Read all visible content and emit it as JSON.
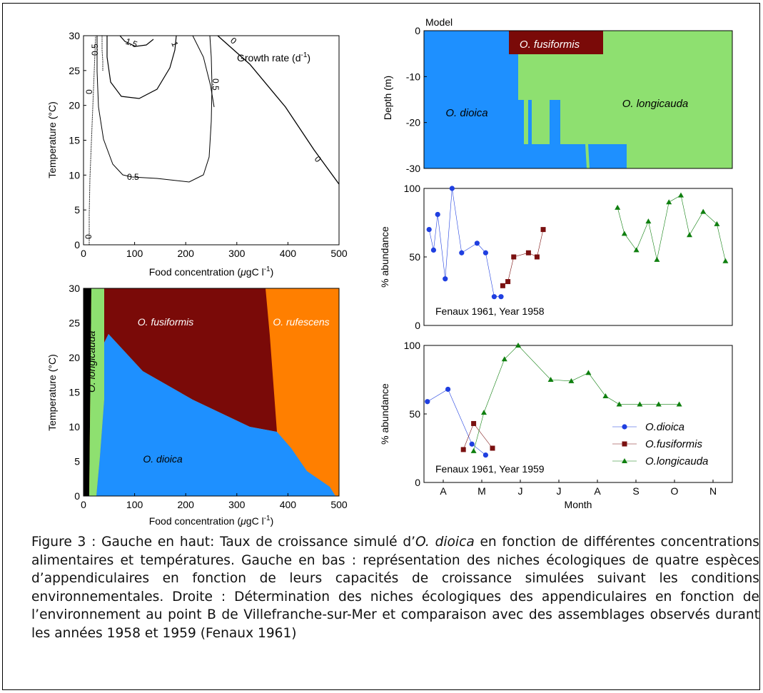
{
  "charts": {
    "growth": {
      "type": "contour",
      "ylabel": "Temperature (°C)",
      "xlabel_parts": [
        "Food concentration (",
        "μ",
        "gC l",
        "-1",
        ")"
      ],
      "annotation": "Growth rate (d",
      "annotation_sup": "-1",
      "annotation_tail": ")",
      "xticks": [
        "0",
        "100",
        "200",
        "300",
        "400",
        "500"
      ],
      "yticks": [
        "0",
        "5",
        "10",
        "15",
        "20",
        "25",
        "30"
      ],
      "contour_labels": [
        "1.5",
        "0.5",
        "0",
        "1",
        "0.5",
        "0",
        "0.5",
        "0"
      ]
    },
    "niche": {
      "type": "heatmap",
      "ylabel": "Temperature (°C)",
      "xlabel_parts": [
        "Food concentration (",
        "μ",
        "gC l",
        "-1",
        ")"
      ],
      "xticks": [
        "0",
        "100",
        "200",
        "300",
        "400",
        "500"
      ],
      "yticks": [
        "0",
        "5",
        "10",
        "15",
        "20",
        "25",
        "30"
      ],
      "regions": [
        "O. longicauda",
        "O. fusiformis",
        "O. rufescens",
        "O. dioica"
      ]
    },
    "model": {
      "type": "heatmap",
      "title": "Model",
      "ylabel": "Depth (m)",
      "yticks": [
        "0",
        "-10",
        "-20",
        "-30"
      ],
      "regions": [
        "O. fusiformis",
        "O. dioica",
        "O. longicauda"
      ]
    },
    "y1958": {
      "type": "line",
      "ylabel": "% abundance",
      "yticks": [
        "0",
        "50",
        "100"
      ],
      "label": "Fenaux 1961, Year 1958"
    },
    "y1959": {
      "type": "line",
      "ylabel": "% abundance",
      "yticks": [
        "0",
        "50",
        "100"
      ],
      "label": "Fenaux 1961, Year 1959",
      "xticks": [
        "A",
        "M",
        "J",
        "J",
        "A",
        "S",
        "O",
        "N"
      ],
      "xlabel": "Month",
      "legend": [
        "O.dioica",
        "O.fusiformis",
        "O.longicauda"
      ]
    }
  },
  "chart_data": [
    {
      "type": "line",
      "name": "Fenaux 1961, Year 1958",
      "ylim": [
        0,
        100
      ],
      "series": [
        {
          "name": "O.dioica",
          "color": "#1f3fe0",
          "marker": "circle",
          "x": [
            3.05,
            3.18,
            3.3,
            3.52,
            3.72,
            4.0,
            4.45,
            4.7,
            4.95,
            5.15
          ],
          "y": [
            70,
            55,
            81,
            34,
            100,
            53,
            60,
            53,
            21,
            21
          ]
        },
        {
          "name": "O.fusiformis",
          "color": "#7a1010",
          "marker": "square",
          "x": [
            5.2,
            5.35,
            5.52,
            5.95,
            6.2,
            6.38
          ],
          "y": [
            29,
            32,
            50,
            53,
            50,
            70
          ]
        },
        {
          "name": "O.longicauda",
          "color": "#0f7f0f",
          "marker": "triangle",
          "x": [
            8.55,
            8.75,
            9.1,
            9.45,
            9.7,
            10.05,
            10.4,
            10.65,
            11.05,
            11.45,
            11.7
          ],
          "y": [
            86,
            67,
            55,
            76,
            48,
            90,
            95,
            66,
            83,
            74,
            47
          ]
        }
      ]
    },
    {
      "type": "line",
      "name": "Fenaux 1961, Year 1959",
      "ylim": [
        0,
        100
      ],
      "series": [
        {
          "name": "O.dioica",
          "color": "#1f3fe0",
          "marker": "circle",
          "x": [
            3.0,
            3.6,
            4.3,
            4.7
          ],
          "y": [
            59,
            68,
            28,
            20
          ]
        },
        {
          "name": "O.fusiformis",
          "color": "#7a1010",
          "marker": "square",
          "x": [
            4.05,
            4.35,
            4.9
          ],
          "y": [
            24,
            43,
            25
          ]
        },
        {
          "name": "O.longicauda",
          "color": "#0f7f0f",
          "marker": "triangle",
          "x": [
            4.35,
            4.65,
            5.25,
            5.65,
            6.6,
            7.2,
            7.7,
            8.2,
            8.6,
            9.2,
            9.75,
            10.35
          ],
          "y": [
            23,
            51,
            90,
            100,
            75,
            74,
            80,
            63,
            57,
            57,
            57,
            57
          ]
        }
      ]
    }
  ],
  "caption": {
    "p1": "Figure 3 : Gauche en haut: Taux de croissance simulé d’",
    "p1_it": "O. dioica",
    "p1_rest": " en fonction de différentes concentrations alimentaires et températures. Gauche en bas : représentation des niches écologiques de quatre espèces d’appendiculaires en fonction de leurs capacités de croissance simulées suivant les conditions environnementales. Droite : Détermination des niches écologiques des appendiculaires en fonction de l’environnement au point B de Villefranche-sur-Mer et comparaison avec des assemblages observés durant les années 1958 et 1959 (Fenaux 1961)"
  }
}
